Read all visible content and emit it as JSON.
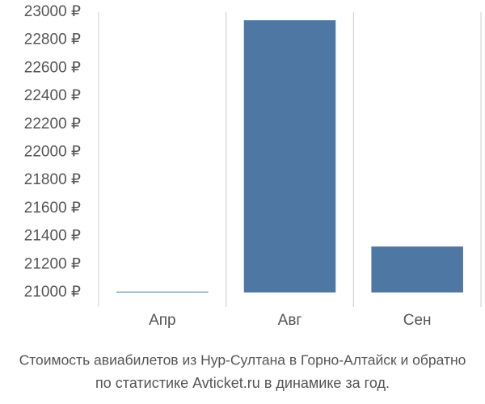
{
  "chart_data": {
    "type": "bar",
    "title": "Стоимость авиабилетов из Нур-Султана в Горно-Алтайск и обратно",
    "subtitle": "по статистике Avticket.ru в динамике за год.",
    "categories": [
      "Апр",
      "Авг",
      "Сен"
    ],
    "values": [
      21006,
      22942,
      21328
    ],
    "color": "#4f77a4",
    "ylim": [
      21000,
      23000
    ],
    "yticks": [
      {
        "value": 21000,
        "label": "21000 ₽"
      },
      {
        "value": 21200,
        "label": "21200 ₽"
      },
      {
        "value": 21400,
        "label": "21400 ₽"
      },
      {
        "value": 21600,
        "label": "21600 ₽"
      },
      {
        "value": 21800,
        "label": "21800 ₽"
      },
      {
        "value": 22000,
        "label": "22000 ₽"
      },
      {
        "value": 22200,
        "label": "22200 ₽"
      },
      {
        "value": 22400,
        "label": "22400 ₽"
      },
      {
        "value": 22600,
        "label": "22600 ₽"
      },
      {
        "value": 22800,
        "label": "22800 ₽"
      },
      {
        "value": 23000,
        "label": "23000 ₽"
      }
    ],
    "grid": false
  }
}
